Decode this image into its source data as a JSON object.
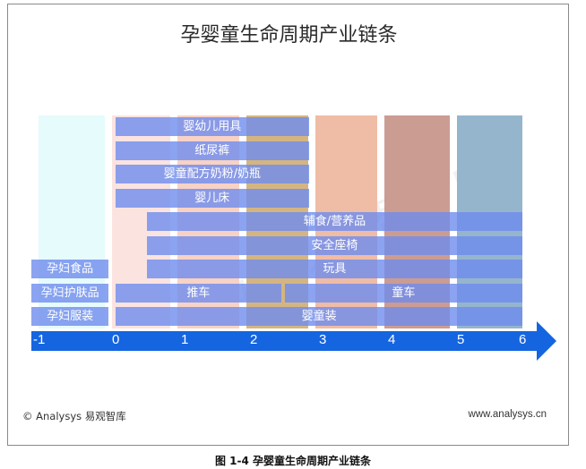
{
  "title": "孕婴童生命周期产业链条",
  "watermark": "易 观 智 库",
  "footer": {
    "left": "© Analysys 易观智库",
    "right": "www.analysys.cn"
  },
  "caption": "图  1-4  孕婴童生命周期产业链条",
  "axis": {
    "ticks": [
      "-1",
      "0",
      "1",
      "2",
      "3",
      "4",
      "5",
      "6"
    ]
  },
  "colors": {
    "bar": "#6e8cee",
    "axis": "#1565e0",
    "bands": [
      "#e6fbfb",
      "#fbe3e0",
      "#f7d2c5",
      "#d4b582",
      "#efbca6",
      "#cb9c92",
      "#95b5cd"
    ]
  },
  "bars": [
    {
      "label": "婴幼儿用具",
      "from": 0,
      "to": 2.8,
      "row": 0
    },
    {
      "label": "纸尿裤",
      "from": 0,
      "to": 2.8,
      "row": 1
    },
    {
      "label": "婴童配方奶粉/奶瓶",
      "from": 0,
      "to": 2.8,
      "row": 2
    },
    {
      "label": "婴儿床",
      "from": 0,
      "to": 2.8,
      "row": 3
    },
    {
      "label": "辅食/营养品",
      "from": 0.45,
      "to": 6,
      "row": 4
    },
    {
      "label": "安全座椅",
      "from": 0.45,
      "to": 6,
      "row": 5
    },
    {
      "label": "孕妇食品",
      "from": -1,
      "to": -0.1,
      "row": 6
    },
    {
      "label": "玩具",
      "from": 0.45,
      "to": 6,
      "row": 6
    },
    {
      "label": "孕妇护肤品",
      "from": -1,
      "to": -0.1,
      "row": 7
    },
    {
      "label": "推车",
      "from": 0,
      "to": 2.4,
      "row": 7
    },
    {
      "label": "童车",
      "from": 2.45,
      "to": 6,
      "row": 7
    },
    {
      "label": "孕妇服装",
      "from": -1,
      "to": -0.1,
      "row": 8
    },
    {
      "label": "婴童装",
      "from": 0,
      "to": 6,
      "row": 8
    }
  ]
}
